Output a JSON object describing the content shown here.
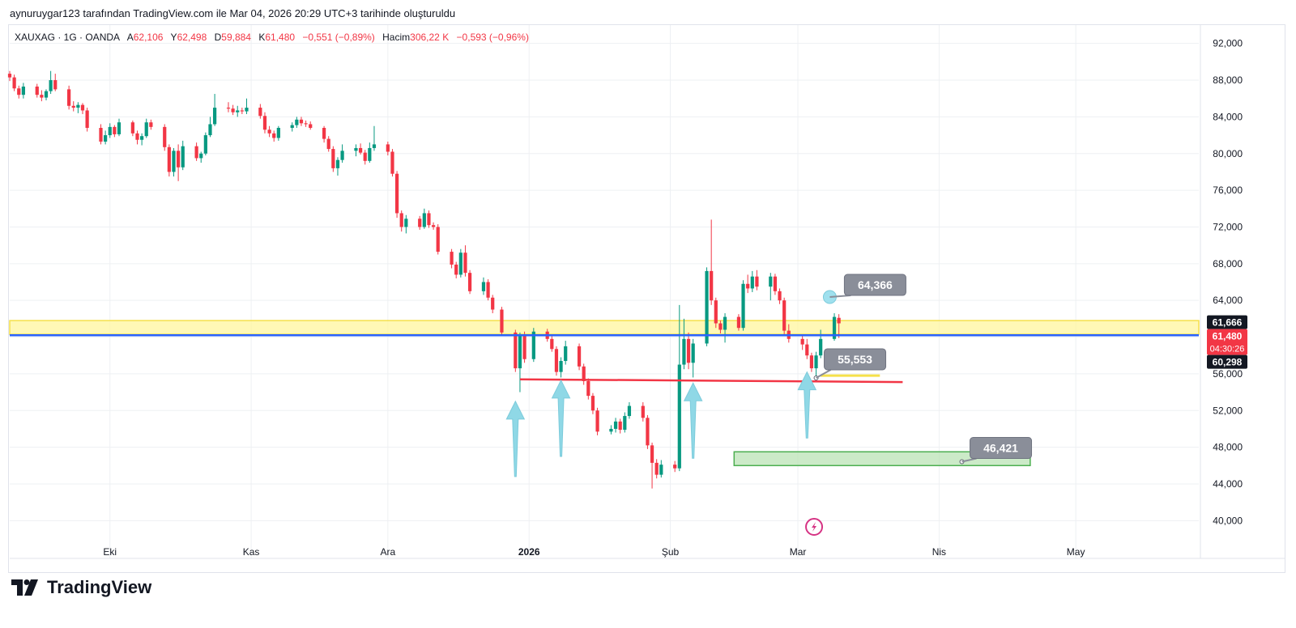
{
  "header": {
    "caption": "aynuruygar123 tarafından TradingView.com ile Mar 04, 2026 20:29 UTC+3 tarihinde oluşturuldu"
  },
  "legend": {
    "symbol": "XAUXAG · 1G · OANDA",
    "open_label": "A",
    "open": "62,106",
    "high_label": "Y",
    "high": "62,498",
    "low_label": "D",
    "low": "59,884",
    "close_label": "K",
    "close": "61,480",
    "change": "−0,551 (−0,89%)",
    "volume_label": "Hacim",
    "volume": "306,22 K",
    "volume_change": "−0,593 (−0,96%)"
  },
  "brand": {
    "name": "TradingView"
  },
  "colors": {
    "up": "#089981",
    "down": "#f23645",
    "grid": "#eef0f3",
    "support_zone": "#fff59d",
    "support_zone_border": "#f5e04a",
    "blue_line": "#2962ff",
    "red_line": "#f23645",
    "arrow": "#8fd8e6",
    "target_box": "#b7e1b0",
    "target_border": "#4caf50",
    "callout": "#8a8e99"
  },
  "chart_data": {
    "type": "candlestick",
    "y_axis": {
      "min": 38000,
      "max": 94000,
      "ticks": [
        "92,000",
        "88,000",
        "84,000",
        "80,000",
        "76,000",
        "72,000",
        "68,000",
        "64,000",
        "60,000",
        "56,000",
        "52,000",
        "48,000",
        "44,000",
        "40,000"
      ],
      "tick_values": [
        92000,
        88000,
        84000,
        80000,
        76000,
        72000,
        68000,
        64000,
        60000,
        56000,
        52000,
        48000,
        44000,
        40000
      ]
    },
    "x_axis": {
      "labels": [
        "Eki",
        "Kas",
        "Ara",
        "2026",
        "Şub",
        "Mar",
        "Nis",
        "May"
      ],
      "label_days": [
        "2025-10-01",
        "2025-11-01",
        "2025-12-01",
        "2026-01-01",
        "2026-02-01",
        "2026-03-01",
        "2026-04-01",
        "2026-05-01"
      ],
      "start": "2025-09-09",
      "end": "2026-05-28"
    },
    "candles": [
      {
        "d": "2025-09-09",
        "o": 88700,
        "h": 89000,
        "l": 87900,
        "c": 88300
      },
      {
        "d": "2025-09-10",
        "o": 88300,
        "h": 88600,
        "l": 86800,
        "c": 87100
      },
      {
        "d": "2025-09-11",
        "o": 87100,
        "h": 87400,
        "l": 86000,
        "c": 86400
      },
      {
        "d": "2025-09-12",
        "o": 86400,
        "h": 87700,
        "l": 86000,
        "c": 87300
      },
      {
        "d": "2025-09-15",
        "o": 87300,
        "h": 87600,
        "l": 86100,
        "c": 86400
      },
      {
        "d": "2025-09-16",
        "o": 86400,
        "h": 86900,
        "l": 85700,
        "c": 86100
      },
      {
        "d": "2025-09-17",
        "o": 86100,
        "h": 87000,
        "l": 85800,
        "c": 86800
      },
      {
        "d": "2025-09-18",
        "o": 86800,
        "h": 89000,
        "l": 86500,
        "c": 88000
      },
      {
        "d": "2025-09-19",
        "o": 88000,
        "h": 88700,
        "l": 86800,
        "c": 87000
      },
      {
        "d": "2025-09-22",
        "o": 87000,
        "h": 87400,
        "l": 84800,
        "c": 85200
      },
      {
        "d": "2025-09-23",
        "o": 85200,
        "h": 85700,
        "l": 84600,
        "c": 85000
      },
      {
        "d": "2025-09-24",
        "o": 85000,
        "h": 85600,
        "l": 84400,
        "c": 85300
      },
      {
        "d": "2025-09-25",
        "o": 85300,
        "h": 85500,
        "l": 84300,
        "c": 84700
      },
      {
        "d": "2025-09-26",
        "o": 84700,
        "h": 85000,
        "l": 82400,
        "c": 82800
      },
      {
        "d": "2025-09-29",
        "o": 82800,
        "h": 83200,
        "l": 81000,
        "c": 81300
      },
      {
        "d": "2025-09-30",
        "o": 81300,
        "h": 82500,
        "l": 81000,
        "c": 82000
      },
      {
        "d": "2025-10-01",
        "o": 82000,
        "h": 83300,
        "l": 81700,
        "c": 82900
      },
      {
        "d": "2025-10-02",
        "o": 82900,
        "h": 83100,
        "l": 81800,
        "c": 82100
      },
      {
        "d": "2025-10-03",
        "o": 82100,
        "h": 83800,
        "l": 81900,
        "c": 83400
      },
      {
        "d": "2025-10-06",
        "o": 83400,
        "h": 83600,
        "l": 81900,
        "c": 82200
      },
      {
        "d": "2025-10-07",
        "o": 82200,
        "h": 82500,
        "l": 81000,
        "c": 81500
      },
      {
        "d": "2025-10-08",
        "o": 81500,
        "h": 82200,
        "l": 80900,
        "c": 81900
      },
      {
        "d": "2025-10-09",
        "o": 81900,
        "h": 83800,
        "l": 81700,
        "c": 83400
      },
      {
        "d": "2025-10-10",
        "o": 83400,
        "h": 83700,
        "l": 82600,
        "c": 82900
      },
      {
        "d": "2025-10-13",
        "o": 82900,
        "h": 83200,
        "l": 80300,
        "c": 80700
      },
      {
        "d": "2025-10-14",
        "o": 80700,
        "h": 81000,
        "l": 77500,
        "c": 78000
      },
      {
        "d": "2025-10-15",
        "o": 78000,
        "h": 80600,
        "l": 77500,
        "c": 80300
      },
      {
        "d": "2025-10-16",
        "o": 80300,
        "h": 81000,
        "l": 77000,
        "c": 78500
      },
      {
        "d": "2025-10-17",
        "o": 78500,
        "h": 81400,
        "l": 78200,
        "c": 80800
      },
      {
        "d": "2025-10-20",
        "o": 80800,
        "h": 81200,
        "l": 79200,
        "c": 79500
      },
      {
        "d": "2025-10-21",
        "o": 79500,
        "h": 80200,
        "l": 79000,
        "c": 80000
      },
      {
        "d": "2025-10-22",
        "o": 80000,
        "h": 82300,
        "l": 79800,
        "c": 82000
      },
      {
        "d": "2025-10-23",
        "o": 82000,
        "h": 84000,
        "l": 81800,
        "c": 83200
      },
      {
        "d": "2025-10-24",
        "o": 83200,
        "h": 86500,
        "l": 83000,
        "c": 85000
      },
      {
        "d": "2025-10-27",
        "o": 85000,
        "h": 85600,
        "l": 84500,
        "c": 84900
      },
      {
        "d": "2025-10-28",
        "o": 84900,
        "h": 85300,
        "l": 84200,
        "c": 84500
      },
      {
        "d": "2025-10-29",
        "o": 84500,
        "h": 85200,
        "l": 84000,
        "c": 84700
      },
      {
        "d": "2025-10-30",
        "o": 84700,
        "h": 85000,
        "l": 84300,
        "c": 84600
      },
      {
        "d": "2025-10-31",
        "o": 84600,
        "h": 86000,
        "l": 84300,
        "c": 85000
      },
      {
        "d": "2025-11-03",
        "o": 85000,
        "h": 85400,
        "l": 83800,
        "c": 84100
      },
      {
        "d": "2025-11-04",
        "o": 84100,
        "h": 84500,
        "l": 82200,
        "c": 82600
      },
      {
        "d": "2025-11-05",
        "o": 82600,
        "h": 83000,
        "l": 81800,
        "c": 82200
      },
      {
        "d": "2025-11-06",
        "o": 82200,
        "h": 82500,
        "l": 81300,
        "c": 81700
      },
      {
        "d": "2025-11-07",
        "o": 81700,
        "h": 83000,
        "l": 81400,
        "c": 82800
      },
      {
        "d": "2025-11-10",
        "o": 82800,
        "h": 83400,
        "l": 82400,
        "c": 83100
      },
      {
        "d": "2025-11-11",
        "o": 83100,
        "h": 84000,
        "l": 82800,
        "c": 83700
      },
      {
        "d": "2025-11-12",
        "o": 83700,
        "h": 84000,
        "l": 83000,
        "c": 83300
      },
      {
        "d": "2025-11-13",
        "o": 83300,
        "h": 83600,
        "l": 82900,
        "c": 83200
      },
      {
        "d": "2025-11-14",
        "o": 83200,
        "h": 83500,
        "l": 82600,
        "c": 82800
      },
      {
        "d": "2025-11-17",
        "o": 82800,
        "h": 83000,
        "l": 81200,
        "c": 81600
      },
      {
        "d": "2025-11-18",
        "o": 81600,
        "h": 81900,
        "l": 80200,
        "c": 80500
      },
      {
        "d": "2025-11-19",
        "o": 80500,
        "h": 80800,
        "l": 78000,
        "c": 78400
      },
      {
        "d": "2025-11-20",
        "o": 78400,
        "h": 79600,
        "l": 77600,
        "c": 79300
      },
      {
        "d": "2025-11-21",
        "o": 79300,
        "h": 81000,
        "l": 79000,
        "c": 80300
      },
      {
        "d": "2025-11-24",
        "o": 80300,
        "h": 81000,
        "l": 79700,
        "c": 80600
      },
      {
        "d": "2025-11-25",
        "o": 80600,
        "h": 81100,
        "l": 79900,
        "c": 80100
      },
      {
        "d": "2025-11-26",
        "o": 80100,
        "h": 80400,
        "l": 78800,
        "c": 79200
      },
      {
        "d": "2025-11-27",
        "o": 79200,
        "h": 81200,
        "l": 79000,
        "c": 80600
      },
      {
        "d": "2025-11-28",
        "o": 80600,
        "h": 83000,
        "l": 80300,
        "c": 81000
      },
      {
        "d": "2025-12-01",
        "o": 81000,
        "h": 81300,
        "l": 79800,
        "c": 80200
      },
      {
        "d": "2025-12-02",
        "o": 80200,
        "h": 80500,
        "l": 77500,
        "c": 77800
      },
      {
        "d": "2025-12-03",
        "o": 77800,
        "h": 78100,
        "l": 73000,
        "c": 73500
      },
      {
        "d": "2025-12-04",
        "o": 73500,
        "h": 73800,
        "l": 71500,
        "c": 72000
      },
      {
        "d": "2025-12-05",
        "o": 72000,
        "h": 73300,
        "l": 71300,
        "c": 72900
      },
      {
        "d": "2025-12-08",
        "o": 72900,
        "h": 73200,
        "l": 71700,
        "c": 72000
      },
      {
        "d": "2025-12-09",
        "o": 72000,
        "h": 74000,
        "l": 71800,
        "c": 73500
      },
      {
        "d": "2025-12-10",
        "o": 73500,
        "h": 73800,
        "l": 71900,
        "c": 72200
      },
      {
        "d": "2025-12-11",
        "o": 72200,
        "h": 72500,
        "l": 71700,
        "c": 72000
      },
      {
        "d": "2025-12-12",
        "o": 72000,
        "h": 72300,
        "l": 69000,
        "c": 69300
      },
      {
        "d": "2025-12-15",
        "o": 69300,
        "h": 69600,
        "l": 67500,
        "c": 67900
      },
      {
        "d": "2025-12-16",
        "o": 67900,
        "h": 68200,
        "l": 66400,
        "c": 66800
      },
      {
        "d": "2025-12-17",
        "o": 66800,
        "h": 69600,
        "l": 66500,
        "c": 69200
      },
      {
        "d": "2025-12-18",
        "o": 69200,
        "h": 70000,
        "l": 66600,
        "c": 67000
      },
      {
        "d": "2025-12-19",
        "o": 67000,
        "h": 67300,
        "l": 64700,
        "c": 65000
      },
      {
        "d": "2025-12-22",
        "o": 65000,
        "h": 66500,
        "l": 64600,
        "c": 66000
      },
      {
        "d": "2025-12-23",
        "o": 66000,
        "h": 66300,
        "l": 64000,
        "c": 64300
      },
      {
        "d": "2025-12-24",
        "o": 64300,
        "h": 64600,
        "l": 62600,
        "c": 63000
      },
      {
        "d": "2025-12-26",
        "o": 63000,
        "h": 63300,
        "l": 60200,
        "c": 60500
      },
      {
        "d": "2025-12-29",
        "o": 60500,
        "h": 60800,
        "l": 56200,
        "c": 56600
      },
      {
        "d": "2025-12-30",
        "o": 56600,
        "h": 60500,
        "l": 54000,
        "c": 60200
      },
      {
        "d": "2025-12-31",
        "o": 60200,
        "h": 60600,
        "l": 57200,
        "c": 57600
      },
      {
        "d": "2026-01-02",
        "o": 57600,
        "h": 61000,
        "l": 57300,
        "c": 60600
      },
      {
        "d": "2026-01-05",
        "o": 60600,
        "h": 60900,
        "l": 59500,
        "c": 59800
      },
      {
        "d": "2026-01-06",
        "o": 59800,
        "h": 60300,
        "l": 58400,
        "c": 58700
      },
      {
        "d": "2026-01-07",
        "o": 58700,
        "h": 59000,
        "l": 55800,
        "c": 56200
      },
      {
        "d": "2026-01-08",
        "o": 56200,
        "h": 57800,
        "l": 55600,
        "c": 57400
      },
      {
        "d": "2026-01-09",
        "o": 57400,
        "h": 59600,
        "l": 57000,
        "c": 59000
      },
      {
        "d": "2026-01-12",
        "o": 59000,
        "h": 59300,
        "l": 56400,
        "c": 56800
      },
      {
        "d": "2026-01-13",
        "o": 56800,
        "h": 57100,
        "l": 54800,
        "c": 55200
      },
      {
        "d": "2026-01-14",
        "o": 55200,
        "h": 55500,
        "l": 53200,
        "c": 53600
      },
      {
        "d": "2026-01-15",
        "o": 53600,
        "h": 53900,
        "l": 51600,
        "c": 52000
      },
      {
        "d": "2026-01-16",
        "o": 52000,
        "h": 52300,
        "l": 49300,
        "c": 49700
      },
      {
        "d": "2026-01-19",
        "o": 49700,
        "h": 50400,
        "l": 49400,
        "c": 50000
      },
      {
        "d": "2026-01-20",
        "o": 50000,
        "h": 51200,
        "l": 49600,
        "c": 50800
      },
      {
        "d": "2026-01-21",
        "o": 50800,
        "h": 51100,
        "l": 49500,
        "c": 49900
      },
      {
        "d": "2026-01-22",
        "o": 49900,
        "h": 51800,
        "l": 49600,
        "c": 51400
      },
      {
        "d": "2026-01-23",
        "o": 51400,
        "h": 52900,
        "l": 51100,
        "c": 52500
      },
      {
        "d": "2026-01-26",
        "o": 52500,
        "h": 52900,
        "l": 50800,
        "c": 51200
      },
      {
        "d": "2026-01-27",
        "o": 51200,
        "h": 51500,
        "l": 47800,
        "c": 48200
      },
      {
        "d": "2026-01-28",
        "o": 48200,
        "h": 48500,
        "l": 43500,
        "c": 46300
      },
      {
        "d": "2026-01-29",
        "o": 46300,
        "h": 46700,
        "l": 44600,
        "c": 45000
      },
      {
        "d": "2026-01-30",
        "o": 45000,
        "h": 46600,
        "l": 44700,
        "c": 46100
      },
      {
        "d": "2026-02-02",
        "o": 46100,
        "h": 46500,
        "l": 45300,
        "c": 45700
      },
      {
        "d": "2026-02-03",
        "o": 45700,
        "h": 63500,
        "l": 45400,
        "c": 57000
      },
      {
        "d": "2026-02-04",
        "o": 57000,
        "h": 62000,
        "l": 56500,
        "c": 59800
      },
      {
        "d": "2026-02-05",
        "o": 59800,
        "h": 60500,
        "l": 56500,
        "c": 57200
      },
      {
        "d": "2026-02-06",
        "o": 57200,
        "h": 59800,
        "l": 55600,
        "c": 59300
      },
      {
        "d": "2026-02-09",
        "o": 59300,
        "h": 67600,
        "l": 59000,
        "c": 67200
      },
      {
        "d": "2026-02-10",
        "o": 67200,
        "h": 72800,
        "l": 63500,
        "c": 64000
      },
      {
        "d": "2026-02-11",
        "o": 64000,
        "h": 64300,
        "l": 61000,
        "c": 61500
      },
      {
        "d": "2026-02-12",
        "o": 61500,
        "h": 61800,
        "l": 60400,
        "c": 60800
      },
      {
        "d": "2026-02-13",
        "o": 60800,
        "h": 62600,
        "l": 59400,
        "c": 62200
      },
      {
        "d": "2026-02-16",
        "o": 62200,
        "h": 62500,
        "l": 60700,
        "c": 61000
      },
      {
        "d": "2026-02-17",
        "o": 61000,
        "h": 66200,
        "l": 60700,
        "c": 65800
      },
      {
        "d": "2026-02-18",
        "o": 65800,
        "h": 66800,
        "l": 64800,
        "c": 65300
      },
      {
        "d": "2026-02-19",
        "o": 65300,
        "h": 67200,
        "l": 64900,
        "c": 66600
      },
      {
        "d": "2026-02-20",
        "o": 66600,
        "h": 67300,
        "l": 65100,
        "c": 65500
      },
      {
        "d": "2026-02-23",
        "o": 65500,
        "h": 67000,
        "l": 64000,
        "c": 66600
      },
      {
        "d": "2026-02-24",
        "o": 66600,
        "h": 66900,
        "l": 64600,
        "c": 65000
      },
      {
        "d": "2026-02-25",
        "o": 65000,
        "h": 65300,
        "l": 63600,
        "c": 64000
      },
      {
        "d": "2026-02-26",
        "o": 64000,
        "h": 64300,
        "l": 60300,
        "c": 60700
      },
      {
        "d": "2026-02-27",
        "o": 60700,
        "h": 61400,
        "l": 59400,
        "c": 59800
      },
      {
        "d": "2026-03-02",
        "o": 59800,
        "h": 60200,
        "l": 58600,
        "c": 59200
      },
      {
        "d": "2026-03-03",
        "o": 59200,
        "h": 59800,
        "l": 57600,
        "c": 58000
      },
      {
        "d": "2026-03-04",
        "o": 58000,
        "h": 58300,
        "l": 56200,
        "c": 56600
      },
      {
        "d": "2026-03-05",
        "o": 56600,
        "h": 58400,
        "l": 55600,
        "c": 58000
      },
      {
        "d": "2026-03-06",
        "o": 58000,
        "h": 60800,
        "l": 57700,
        "c": 59800
      },
      {
        "d": "2026-03-09",
        "o": 59800,
        "h": 62600,
        "l": 59600,
        "c": 62200
      },
      {
        "d": "2026-03-10",
        "o": 62100,
        "h": 62500,
        "l": 59900,
        "c": 61500
      }
    ],
    "price_labels": [
      {
        "value": 61666,
        "text": "61,666",
        "bg": "#131722"
      },
      {
        "value": 61480,
        "text": "61,480",
        "sub": "04:30:26",
        "bg": "#f23645"
      },
      {
        "value": 60298,
        "text": "60,298",
        "bg": "#131722"
      }
    ],
    "drawings": {
      "support_zone": {
        "from": "2025-09-09",
        "to": "2026-05-28",
        "top": 61800,
        "bottom": 60300
      },
      "blue_line": {
        "from": "2025-09-09",
        "to": "2026-05-28",
        "value": 60200
      },
      "red_trendline": {
        "from": "2025-12-30",
        "to": "2026-03-24",
        "v1": 55400,
        "v2": 55100
      },
      "yellow_short_line": {
        "from": "2026-03-06",
        "to": "2026-03-19",
        "value": 55800
      },
      "arrows": [
        {
          "d": "2025-12-29",
          "top": 53000,
          "bottom": 44800
        },
        {
          "d": "2026-01-08",
          "top": 55300,
          "bottom": 47000
        },
        {
          "d": "2026-02-06",
          "top": 55000,
          "bottom": 46800
        },
        {
          "d": "2026-03-03",
          "top": 56200,
          "bottom": 49000
        }
      ],
      "target_box": {
        "from": "2026-02-15",
        "to": "2026-04-21",
        "top": 47500,
        "bottom": 46000
      },
      "callouts": [
        {
          "text": "64,366",
          "d": "2026-03-08",
          "v": 64366,
          "anchor": "circle"
        },
        {
          "text": "55,553",
          "d": "2026-03-05",
          "v": 55553,
          "anchor": "dot"
        },
        {
          "text": "46,421",
          "d": "2026-04-06",
          "v": 46421,
          "anchor": "dot"
        }
      ]
    }
  }
}
